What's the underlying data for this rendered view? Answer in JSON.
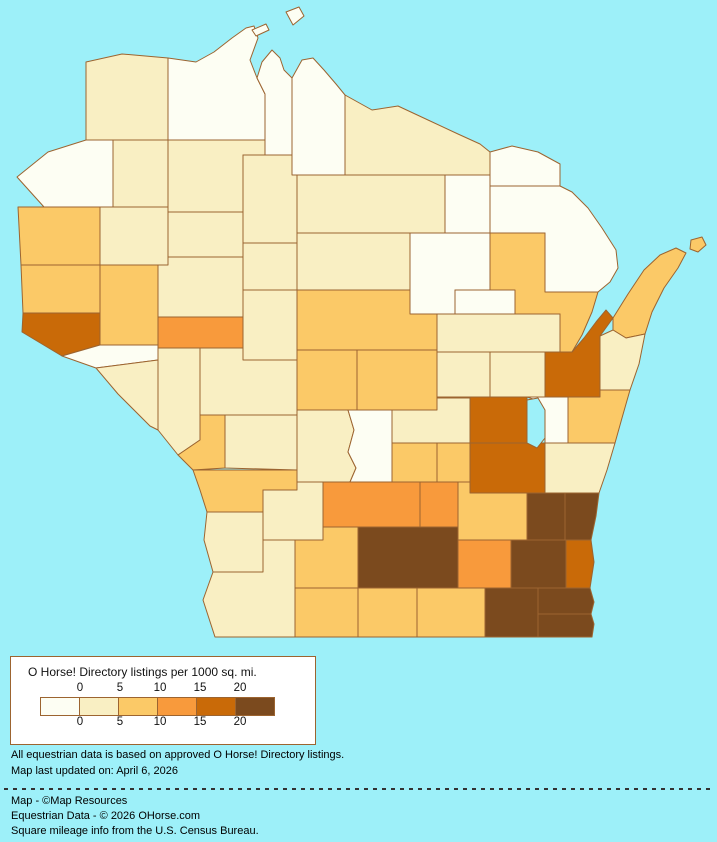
{
  "legend": {
    "title": "O Horse! Directory listings per 1000 sq. mi.",
    "ticks": [
      "0",
      "5",
      "10",
      "15",
      "20"
    ],
    "bin_bounds": [
      0,
      5,
      10,
      15,
      20
    ],
    "palette": [
      "#FDFEF3",
      "#F9EFC3",
      "#FBC967",
      "#F89A3C",
      "#C96A08",
      "#7B4A1E"
    ]
  },
  "map": {
    "subject": "Wisconsin counties choropleth",
    "background_color": "#9DF0F9",
    "border_color": "#9C6430",
    "water_color": "#9DF0F9",
    "regions": {
      "douglas": 1,
      "bayfield": 0,
      "ashland": 0,
      "iron": 0,
      "vilas": 1,
      "florence": 0,
      "forest": 0,
      "marinette": 0,
      "burnett": 0,
      "washburn": 1,
      "sawyer": 1,
      "price": 1,
      "oneida": 1,
      "polk": 2,
      "barron": 1,
      "rusk": 1,
      "st-croix": 2,
      "dunn": 2,
      "chippewa": 1,
      "taylor": 1,
      "lincoln": 1,
      "langlade": 0,
      "menominee": 0,
      "oconto": 2,
      "brown": 4,
      "door": 2,
      "kewaunee": 1,
      "pierce": 4,
      "pepin": 0,
      "eau-claire": 3,
      "clark": 1,
      "marathon": 2,
      "shawano": 1,
      "buffalo": 1,
      "trempealeau": 1,
      "jackson": 1,
      "wood": 2,
      "portage": 2,
      "waupaca": 1,
      "outagamie": 1,
      "la-crosse": 2,
      "monroe": 1,
      "juneau": 1,
      "adams": 0,
      "waushara": 1,
      "winnebago": 4,
      "calumet": 0,
      "manitowoc": 2,
      "vernon": 2,
      "richland": 1,
      "sauk": 3,
      "columbia": 3,
      "marquette": 2,
      "green-lake": 2,
      "fond-du-lac": 4,
      "sheboygan": 1,
      "dodge": 2,
      "washington": 5,
      "ozaukee": 5,
      "crawford": 1,
      "grant": 1,
      "iowa": 2,
      "dane": 5,
      "jefferson": 3,
      "waukesha": 5,
      "milwaukee": 4,
      "lafayette": 2,
      "green": 2,
      "rock": 2,
      "walworth": 5,
      "racine": 5,
      "kenosha": 5,
      "madeline-island": 0,
      "long-island": 0,
      "washington-island": 2
    }
  },
  "notes": {
    "approval": "All equestrian data is based on approved O Horse! Directory listings.",
    "updated": "Map last updated on: April 6, 2026"
  },
  "credits": {
    "map": "Map - ©Map Resources",
    "data": "Equestrian Data - © 2026 OHorse.com",
    "mileage": "Square mileage info from the U.S. Census Bureau."
  }
}
